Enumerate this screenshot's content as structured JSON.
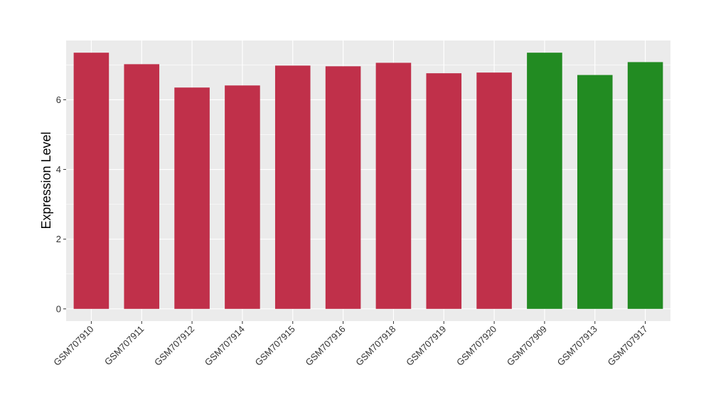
{
  "chart_data": {
    "type": "bar",
    "categories": [
      "GSM707910",
      "GSM707911",
      "GSM707912",
      "GSM707914",
      "GSM707915",
      "GSM707916",
      "GSM707918",
      "GSM707919",
      "GSM707920",
      "GSM707909",
      "GSM707913",
      "GSM707917"
    ],
    "values": [
      7.35,
      7.02,
      6.35,
      6.41,
      6.98,
      6.96,
      7.06,
      6.76,
      6.78,
      7.35,
      6.71,
      7.08
    ],
    "bar_colors": [
      "#c0304a",
      "#c0304a",
      "#c0304a",
      "#c0304a",
      "#c0304a",
      "#c0304a",
      "#c0304a",
      "#c0304a",
      "#c0304a",
      "#228b22",
      "#228b22",
      "#228b22"
    ],
    "ylabel": "Expression Level",
    "xlabel": "",
    "title": "",
    "ylim": [
      -0.35,
      7.7
    ],
    "yticks": [
      0,
      2,
      4,
      6
    ],
    "ytick_labels": [
      "0",
      "2",
      "4",
      "6"
    ],
    "grid": true,
    "panel_color": "#ebebeb",
    "grid_color": "#ffffff"
  }
}
